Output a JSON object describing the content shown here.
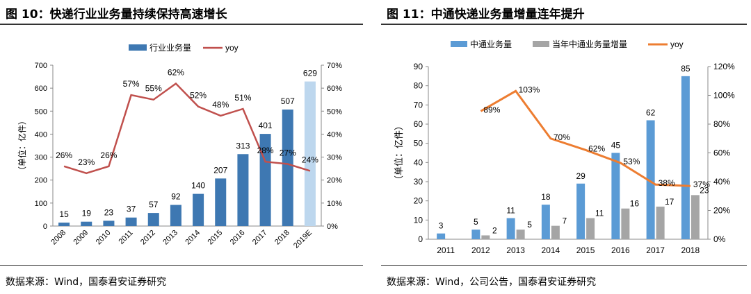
{
  "charts": [
    {
      "title": "图 10：快递行业业务量持续保持高速增长",
      "source": "数据来源：Wind，国泰君安证券研究",
      "colors": {
        "bar": "#3E78B2",
        "bar_forecast": "#BDD7EE",
        "line": "#C0504D"
      }
    },
    {
      "title": "图 11：中通快递业务量增量连年提升",
      "source": "数据来源：Wind，公司公告，国泰君安证券研究",
      "colors": {
        "bar1": "#5B9BD5",
        "bar2": "#A5A5A5",
        "line": "#ED7D31"
      }
    }
  ],
  "chart_data": [
    {
      "type": "bar",
      "title": "快递行业业务量持续保持高速增长",
      "categories": [
        "2008",
        "2009",
        "2010",
        "2011",
        "2012",
        "2013",
        "2014",
        "2015",
        "2016",
        "2017",
        "2018",
        "2019E"
      ],
      "series": [
        {
          "name": "行业业务量",
          "type": "bar",
          "axis": "left",
          "values": [
            15,
            19,
            23,
            37,
            57,
            92,
            140,
            207,
            313,
            401,
            507,
            629
          ],
          "labels": [
            "15",
            "19",
            "23",
            "37",
            "57",
            "92",
            "140",
            "207",
            "313",
            "401",
            "507",
            "629"
          ]
        },
        {
          "name": "yoy",
          "type": "line",
          "axis": "right",
          "values": [
            26,
            23,
            26,
            57,
            55,
            62,
            52,
            48,
            51,
            28,
            27,
            24
          ],
          "labels": [
            "26%",
            "23%",
            "26%",
            "57%",
            "55%",
            "62%",
            "52%",
            "48%",
            "51%",
            "28%",
            "27%",
            "24%"
          ]
        }
      ],
      "ylabel": "（单位：亿件）",
      "ylim": [
        0,
        700
      ],
      "y_ticks": [
        "0",
        "100",
        "200",
        "300",
        "400",
        "500",
        "600",
        "700"
      ],
      "y2lim": [
        0,
        70
      ],
      "y2_ticks": [
        "0%",
        "10%",
        "20%",
        "30%",
        "40%",
        "50%",
        "60%",
        "70%"
      ],
      "legend": [
        "行业业务量",
        "yoy"
      ],
      "legend_position": "top"
    },
    {
      "type": "bar",
      "title": "中通快递业务量增量连年提升",
      "categories": [
        "2011",
        "2012",
        "2013",
        "2014",
        "2015",
        "2016",
        "2017",
        "2018"
      ],
      "series": [
        {
          "name": "中通业务量",
          "type": "bar",
          "axis": "left",
          "values": [
            3,
            5,
            11,
            18,
            29,
            45,
            62,
            85
          ],
          "labels": [
            "3",
            "5",
            "11",
            "18",
            "29",
            "45",
            "62",
            "85"
          ]
        },
        {
          "name": "当年中通业务量增量",
          "type": "bar",
          "axis": "left",
          "values": [
            null,
            2,
            5,
            7,
            11,
            16,
            17,
            23
          ],
          "labels": [
            "",
            "2",
            "5",
            "7",
            "11",
            "16",
            "17",
            "23"
          ]
        },
        {
          "name": "yoy",
          "type": "line",
          "axis": "right",
          "values": [
            null,
            89,
            103,
            70,
            62,
            53,
            38,
            37
          ],
          "labels": [
            "",
            "89%",
            "103%",
            "70%",
            "62%",
            "53%",
            "38%",
            "37%"
          ]
        }
      ],
      "ylabel": "（单位：亿件）",
      "ylim": [
        0,
        90
      ],
      "y_ticks": [
        "0",
        "10",
        "20",
        "30",
        "40",
        "50",
        "60",
        "70",
        "80",
        "90"
      ],
      "y2lim": [
        0,
        120
      ],
      "y2_ticks": [
        "0%",
        "20%",
        "40%",
        "60%",
        "80%",
        "100%",
        "120%"
      ],
      "legend": [
        "中通业务量",
        "当年中通业务量增量",
        "yoy"
      ],
      "legend_position": "top"
    }
  ]
}
